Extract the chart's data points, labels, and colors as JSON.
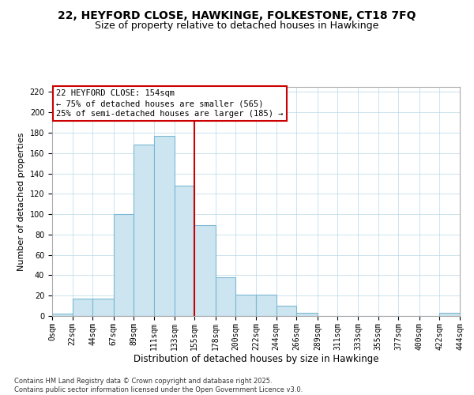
{
  "title": "22, HEYFORD CLOSE, HAWKINGE, FOLKESTONE, CT18 7FQ",
  "subtitle": "Size of property relative to detached houses in Hawkinge",
  "xlabel": "Distribution of detached houses by size in Hawkinge",
  "ylabel": "Number of detached properties",
  "bin_edges": [
    0,
    22,
    44,
    67,
    89,
    111,
    133,
    155,
    178,
    200,
    222,
    244,
    266,
    289,
    311,
    333,
    355,
    377,
    400,
    422,
    444
  ],
  "bin_labels": [
    "0sqm",
    "22sqm",
    "44sqm",
    "67sqm",
    "89sqm",
    "111sqm",
    "133sqm",
    "155sqm",
    "178sqm",
    "200sqm",
    "222sqm",
    "244sqm",
    "266sqm",
    "289sqm",
    "311sqm",
    "333sqm",
    "355sqm",
    "377sqm",
    "400sqm",
    "422sqm",
    "444sqm"
  ],
  "counts": [
    2,
    17,
    17,
    100,
    168,
    177,
    128,
    89,
    38,
    21,
    21,
    10,
    3,
    0,
    0,
    0,
    0,
    0,
    0,
    3
  ],
  "bar_color": "#cce5f0",
  "bar_edge_color": "#7ab8d4",
  "vline_x": 155,
  "vline_color": "#cc0000",
  "annotation_line1": "22 HEYFORD CLOSE: 154sqm",
  "annotation_line2": "← 75% of detached houses are smaller (565)",
  "annotation_line3": "25% of semi-detached houses are larger (185) →",
  "ylim": [
    0,
    225
  ],
  "yticks": [
    0,
    20,
    40,
    60,
    80,
    100,
    120,
    140,
    160,
    180,
    200,
    220
  ],
  "footnote": "Contains HM Land Registry data © Crown copyright and database right 2025.\nContains public sector information licensed under the Open Government Licence v3.0.",
  "title_fontsize": 10,
  "subtitle_fontsize": 9,
  "xlabel_fontsize": 8.5,
  "ylabel_fontsize": 8,
  "tick_fontsize": 7,
  "annotation_fontsize": 7.5,
  "footnote_fontsize": 6
}
